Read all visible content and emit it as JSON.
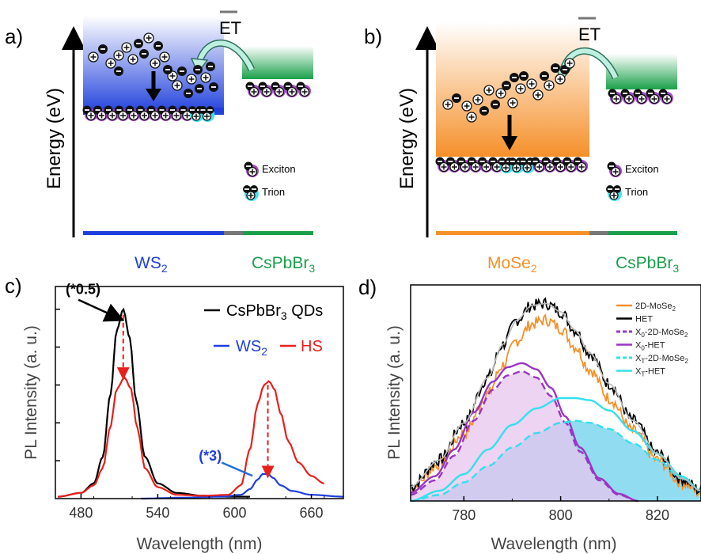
{
  "panels": {
    "a": {
      "label": "a)",
      "ylabel": "Energy (eV)",
      "et_label": "ET",
      "materials": [
        "WS",
        "CsPbBr"
      ],
      "material_subscripts": [
        "2",
        "3"
      ],
      "legend": [
        "Exciton",
        "Trion"
      ],
      "colors": {
        "material": "#1f3fdc",
        "perovskite": "#1aa04a"
      }
    },
    "b": {
      "label": "b)",
      "ylabel": "Energy (eV)",
      "et_label": "ET",
      "materials": [
        "MoSe",
        "CsPbBr"
      ],
      "material_subscripts": [
        "2",
        "3"
      ],
      "legend": [
        "Exciton",
        "Trion"
      ],
      "colors": {
        "material": "#f5902a",
        "perovskite": "#1aa04a"
      }
    }
  },
  "chart_data": [
    {
      "type": "line",
      "panel_label": "c)",
      "xlabel": "Wavelength (nm)",
      "ylabel": "PL Intensity (a. u.)",
      "xlim": [
        460,
        685
      ],
      "ylim": [
        0,
        1.12
      ],
      "xticks": [
        480,
        540,
        600,
        660
      ],
      "grid": false,
      "legend_placement": "top-right",
      "annotations": [
        {
          "text": "(*0.5)",
          "x": 513,
          "y": 0.95
        },
        {
          "text": "(*3)",
          "x": 606,
          "y": 0.18
        }
      ],
      "series": [
        {
          "name": "CsPbBr3 QDs",
          "legend_text": "CsPbBr",
          "legend_sub": "3",
          "legend_suffix": " QDs",
          "color": "#000000",
          "x": [
            462,
            480,
            490,
            497,
            503,
            508,
            513,
            518,
            523,
            530,
            540,
            555,
            575,
            595,
            612
          ],
          "y": [
            0.01,
            0.03,
            0.08,
            0.22,
            0.55,
            0.89,
            1.0,
            0.85,
            0.52,
            0.22,
            0.08,
            0.03,
            0.015,
            0.01,
            0.01
          ]
        },
        {
          "name": "WS2",
          "legend_text": "WS",
          "legend_sub": "2",
          "legend_suffix": "",
          "color": "#1f3fdc",
          "x": [
            527,
            560,
            590,
            605,
            612,
            618,
            622,
            626,
            630,
            636,
            645,
            660,
            685
          ],
          "y": [
            0.0,
            0.005,
            0.01,
            0.02,
            0.05,
            0.1,
            0.13,
            0.13,
            0.11,
            0.07,
            0.04,
            0.02,
            0.01
          ]
        },
        {
          "name": "HS",
          "legend_text": "HS",
          "legend_sub": "",
          "legend_suffix": "",
          "color": "#e8201c",
          "x": [
            462,
            480,
            490,
            497,
            503,
            508,
            514,
            519,
            524,
            530,
            540,
            555,
            575,
            595,
            605,
            612,
            618,
            623,
            627,
            631,
            636,
            642,
            650,
            660,
            670
          ],
          "y": [
            0.01,
            0.03,
            0.07,
            0.16,
            0.38,
            0.58,
            0.64,
            0.58,
            0.37,
            0.16,
            0.06,
            0.02,
            0.015,
            0.02,
            0.07,
            0.26,
            0.5,
            0.6,
            0.62,
            0.58,
            0.45,
            0.3,
            0.19,
            0.12,
            0.08
          ]
        }
      ]
    },
    {
      "type": "line",
      "panel_label": "d)",
      "xlabel": "Wavelength (nm)",
      "ylabel": "PL Intensity (a. u.)",
      "xlim": [
        769,
        829
      ],
      "ylim": [
        0,
        1.05
      ],
      "xticks": [
        780,
        800,
        820
      ],
      "grid": false,
      "legend_placement": "top-right",
      "series": [
        {
          "name": "2D-MoSe2",
          "legend_text": "2D-MoSe",
          "legend_sub": "2",
          "color": "#f5902a",
          "style": "noisy",
          "x": [
            769,
            775,
            780,
            785,
            788,
            791,
            794,
            797,
            800,
            803,
            806,
            810,
            815,
            820,
            825,
            829
          ],
          "y": [
            0.06,
            0.18,
            0.33,
            0.52,
            0.66,
            0.78,
            0.86,
            0.88,
            0.84,
            0.75,
            0.64,
            0.5,
            0.34,
            0.2,
            0.09,
            0.04
          ]
        },
        {
          "name": "HET",
          "legend_text": "HET",
          "legend_sub": "",
          "color": "#000000",
          "style": "noisy",
          "x": [
            769,
            775,
            780,
            785,
            788,
            791,
            794,
            797,
            800,
            803,
            806,
            810,
            815,
            820,
            825,
            829
          ],
          "y": [
            0.07,
            0.2,
            0.38,
            0.6,
            0.76,
            0.88,
            0.95,
            0.96,
            0.92,
            0.83,
            0.72,
            0.57,
            0.39,
            0.23,
            0.11,
            0.05
          ]
        },
        {
          "name": "X0-2D-MoSe2",
          "legend_text": "X",
          "legend_sub": "0",
          "legend_suffix": "-2D-MoSe",
          "legend_sub2": "2",
          "color": "#9b35c4",
          "style": "dashed",
          "fill": "#e6c6ee",
          "x": [
            769,
            774,
            778,
            782,
            786,
            789,
            792,
            795,
            798,
            801,
            804,
            808,
            812,
            816
          ],
          "y": [
            0.03,
            0.1,
            0.22,
            0.39,
            0.54,
            0.61,
            0.63,
            0.6,
            0.51,
            0.38,
            0.24,
            0.1,
            0.03,
            0.0
          ]
        },
        {
          "name": "X0-HET",
          "legend_text": "X",
          "legend_sub": "0",
          "legend_suffix": "-HET",
          "legend_sub2": "",
          "color": "#9b35c4",
          "style": "solid",
          "x": [
            769,
            774,
            778,
            782,
            786,
            789,
            792,
            795,
            798,
            801,
            804,
            808,
            812,
            816
          ],
          "y": [
            0.04,
            0.12,
            0.25,
            0.43,
            0.58,
            0.65,
            0.67,
            0.64,
            0.55,
            0.41,
            0.26,
            0.11,
            0.035,
            0.0
          ]
        },
        {
          "name": "XT-2D-MoSe2",
          "legend_text": "X",
          "legend_sub": "T",
          "legend_suffix": "-2D-MoSe",
          "legend_sub2": "2",
          "color": "#33e0ee",
          "style": "dashed",
          "fill": "#7fd6ee",
          "x": [
            769,
            775,
            780,
            785,
            790,
            795,
            800,
            803,
            806,
            810,
            815,
            820,
            825,
            829
          ],
          "y": [
            0.0,
            0.03,
            0.09,
            0.17,
            0.26,
            0.33,
            0.38,
            0.39,
            0.38,
            0.35,
            0.28,
            0.2,
            0.11,
            0.05
          ]
        },
        {
          "name": "XT-HET",
          "legend_text": "X",
          "legend_sub": "T",
          "legend_suffix": "-HET",
          "legend_sub2": "",
          "color": "#33e0ee",
          "style": "solid",
          "x": [
            769,
            775,
            780,
            785,
            790,
            795,
            800,
            803,
            806,
            810,
            815,
            820,
            825,
            829
          ],
          "y": [
            0.0,
            0.05,
            0.13,
            0.25,
            0.37,
            0.45,
            0.5,
            0.5,
            0.49,
            0.44,
            0.34,
            0.23,
            0.12,
            0.05
          ]
        }
      ]
    }
  ]
}
